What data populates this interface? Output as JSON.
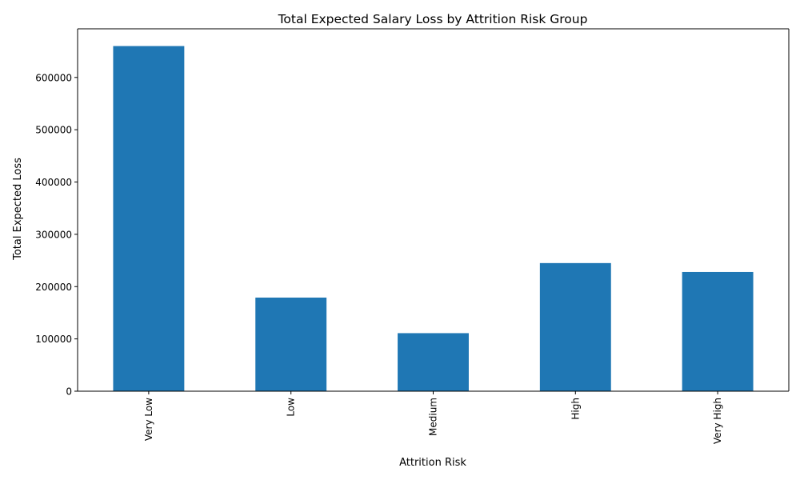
{
  "chart_data": {
    "type": "bar",
    "title": "Total Expected Salary Loss by Attrition Risk Group",
    "xlabel": "Attrition Risk",
    "ylabel": "Total Expected Loss",
    "categories": [
      "Very Low",
      "Low",
      "Medium",
      "High",
      "Very High"
    ],
    "values": [
      660000,
      179000,
      111000,
      245000,
      228000
    ],
    "ylim": [
      0,
      693000
    ],
    "yticks": [
      0,
      100000,
      200000,
      300000,
      400000,
      500000,
      600000
    ],
    "ytick_labels": [
      "0",
      "100000",
      "200000",
      "300000",
      "400000",
      "500000",
      "600000"
    ],
    "bar_color": "#1f77b4",
    "grid": false,
    "legend": "none"
  }
}
